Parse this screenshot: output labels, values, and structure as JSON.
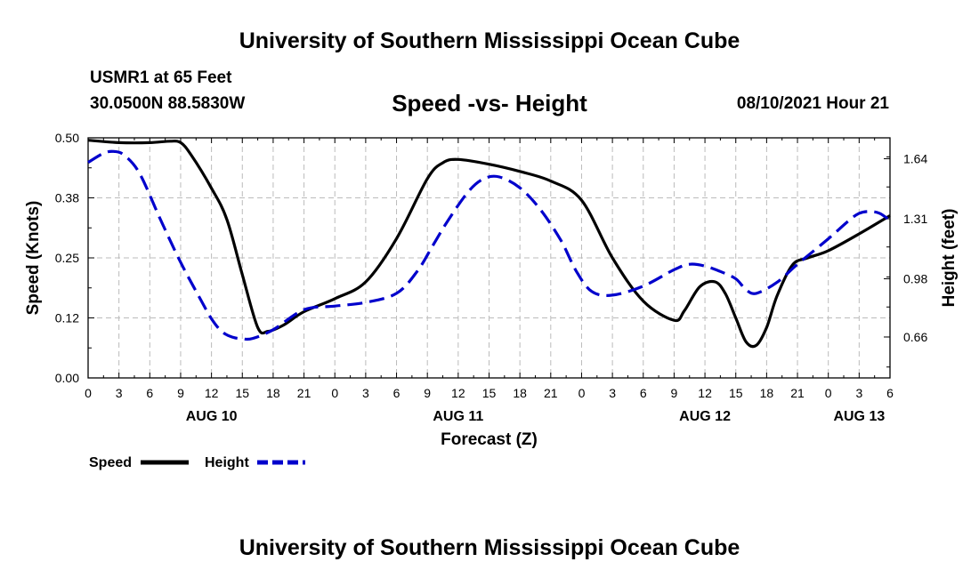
{
  "header": {
    "title_top": "University of Southern Mississippi Ocean Cube",
    "title_bottom": "University of Southern Mississippi Ocean Cube",
    "station": "USMR1 at 65 Feet",
    "coords": "30.0500N  88.5830W",
    "chart_title": "Speed -vs- Height",
    "timestamp": "08/10/2021 Hour 21"
  },
  "colors": {
    "speed": "#000000",
    "height": "#0000cc",
    "grid": "#bbbbbb"
  },
  "chart_data": {
    "type": "line",
    "title": "Speed -vs- Height",
    "xlabel": "Forecast (Z)",
    "ylabel": "Speed (Knots)",
    "y2label": "Height (feet)",
    "x_hours_range": [
      0,
      78
    ],
    "x_ticks": [
      {
        "h": 0,
        "label": "0"
      },
      {
        "h": 3,
        "label": "3"
      },
      {
        "h": 6,
        "label": "6"
      },
      {
        "h": 9,
        "label": "9"
      },
      {
        "h": 12,
        "label": "12"
      },
      {
        "h": 15,
        "label": "15"
      },
      {
        "h": 18,
        "label": "18"
      },
      {
        "h": 21,
        "label": "21"
      },
      {
        "h": 24,
        "label": "0"
      },
      {
        "h": 27,
        "label": "3"
      },
      {
        "h": 30,
        "label": "6"
      },
      {
        "h": 33,
        "label": "9"
      },
      {
        "h": 36,
        "label": "12"
      },
      {
        "h": 39,
        "label": "15"
      },
      {
        "h": 42,
        "label": "18"
      },
      {
        "h": 45,
        "label": "21"
      },
      {
        "h": 48,
        "label": "0"
      },
      {
        "h": 51,
        "label": "3"
      },
      {
        "h": 54,
        "label": "6"
      },
      {
        "h": 57,
        "label": "9"
      },
      {
        "h": 60,
        "label": "12"
      },
      {
        "h": 63,
        "label": "15"
      },
      {
        "h": 66,
        "label": "18"
      },
      {
        "h": 69,
        "label": "21"
      },
      {
        "h": 72,
        "label": "0"
      },
      {
        "h": 75,
        "label": "3"
      },
      {
        "h": 78,
        "label": "6"
      }
    ],
    "day_labels": [
      {
        "h": 12,
        "label": "AUG 10"
      },
      {
        "h": 36,
        "label": "AUG 11"
      },
      {
        "h": 60,
        "label": "AUG 12"
      },
      {
        "h": 75,
        "label": "AUG 13"
      }
    ],
    "ylim": [
      0,
      0.5
    ],
    "y_ticks": [
      {
        "v": 0.0,
        "label": "0.00"
      },
      {
        "v": 0.125,
        "label": "0.12"
      },
      {
        "v": 0.25,
        "label": "0.25"
      },
      {
        "v": 0.375,
        "label": "0.38"
      },
      {
        "v": 0.5,
        "label": "0.50"
      }
    ],
    "y2lim": [
      0.435,
      1.755
    ],
    "y2_ticks": [
      {
        "v": 0.66,
        "label": "0.66"
      },
      {
        "v": 0.98,
        "label": "0.98"
      },
      {
        "v": 1.31,
        "label": "1.31"
      },
      {
        "v": 1.64,
        "label": "1.64"
      }
    ],
    "series": [
      {
        "name": "Speed",
        "axis": "left",
        "style": "solid",
        "color": "#000000",
        "x": [
          0,
          3,
          6,
          8,
          9,
          10,
          12,
          13.5,
          15,
          16.5,
          17.5,
          19,
          21,
          24,
          27,
          30,
          33,
          34.5,
          36,
          39,
          42,
          45,
          48,
          51,
          54,
          57,
          58,
          59.5,
          61,
          62,
          63,
          64,
          65,
          66,
          67,
          68.5,
          70,
          72,
          75,
          78
        ],
        "y": [
          0.495,
          0.49,
          0.49,
          0.493,
          0.49,
          0.465,
          0.395,
          0.33,
          0.215,
          0.105,
          0.097,
          0.11,
          0.138,
          0.165,
          0.2,
          0.29,
          0.415,
          0.448,
          0.455,
          0.445,
          0.43,
          0.41,
          0.37,
          0.25,
          0.16,
          0.12,
          0.14,
          0.19,
          0.2,
          0.175,
          0.125,
          0.075,
          0.068,
          0.105,
          0.17,
          0.235,
          0.25,
          0.265,
          0.3,
          0.338
        ]
      },
      {
        "name": "Height",
        "axis": "right",
        "style": "dashed",
        "color": "#0000cc",
        "x": [
          0,
          1.5,
          2.5,
          3.5,
          5,
          7,
          9,
          11,
          12,
          13,
          14,
          15,
          16,
          18,
          21,
          24,
          27,
          30,
          32,
          33.5,
          35,
          37,
          38.5,
          40,
          42,
          44,
          46,
          47.5,
          49,
          51,
          54,
          57,
          58.5,
          60,
          61.5,
          63,
          64,
          65,
          67,
          69,
          72,
          74,
          75,
          76,
          77,
          78
        ],
        "y": [
          1.62,
          1.67,
          1.68,
          1.66,
          1.56,
          1.31,
          1.07,
          0.86,
          0.76,
          0.69,
          0.66,
          0.65,
          0.652,
          0.7,
          0.81,
          0.83,
          0.85,
          0.9,
          1.02,
          1.16,
          1.3,
          1.46,
          1.53,
          1.54,
          1.48,
          1.36,
          1.19,
          1.02,
          0.91,
          0.89,
          0.94,
          1.03,
          1.06,
          1.05,
          1.02,
          0.98,
          0.92,
          0.9,
          0.96,
          1.06,
          1.2,
          1.3,
          1.34,
          1.35,
          1.34,
          1.3
        ]
      }
    ],
    "legend": [
      {
        "label": "Speed",
        "color": "#000000",
        "style": "solid"
      },
      {
        "label": "Height",
        "color": "#0000cc",
        "style": "dashed"
      }
    ],
    "legend_position": "bottom-left",
    "grid": true
  }
}
